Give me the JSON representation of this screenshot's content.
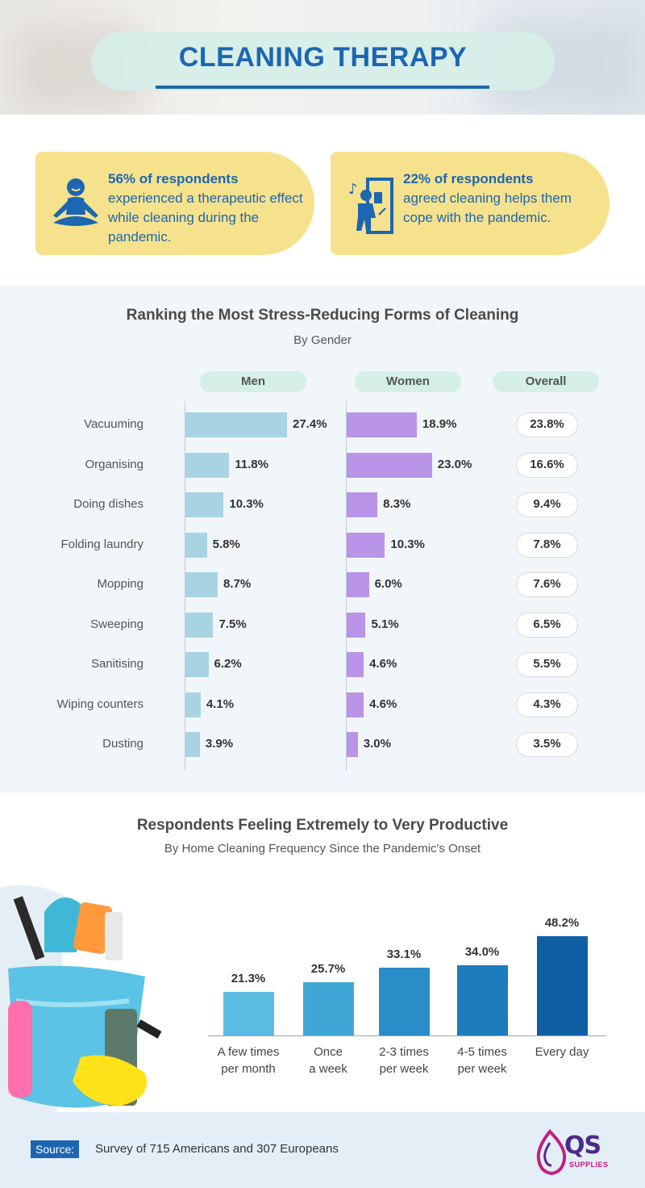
{
  "header": {
    "title": "CLEANING THERAPY"
  },
  "stats": [
    {
      "icon": "meditation-icon",
      "highlight": "56% of respondents",
      "text": "experienced a therapeutic effect while cleaning during the pandemic."
    },
    {
      "icon": "window-cleaning-icon",
      "highlight": "22% of respondents",
      "text": "agreed cleaning helps them cope with the pandemic."
    }
  ],
  "ranking": {
    "title": "Ranking the Most Stress-Reducing Forms of Cleaning",
    "subtitle": "By Gender",
    "columns": [
      "Men",
      "Women",
      "Overall"
    ]
  },
  "chart_data": [
    {
      "type": "bar",
      "orientation": "horizontal",
      "title": "Ranking the Most Stress-Reducing Forms of Cleaning",
      "subtitle": "By Gender",
      "categories": [
        "Vacuuming",
        "Organising",
        "Doing dishes",
        "Folding laundry",
        "Mopping",
        "Sweeping",
        "Sanitising",
        "Wiping counters",
        "Dusting"
      ],
      "series": [
        {
          "name": "Men",
          "values": [
            27.4,
            11.8,
            10.3,
            5.8,
            8.7,
            7.5,
            6.2,
            4.1,
            3.9
          ],
          "labels": [
            "27.4%",
            "11.8%",
            "10.3%",
            "5.8%",
            "8.7%",
            "7.5%",
            "6.2%",
            "4.1%",
            "3.9%"
          ],
          "color": "#a8d4e2"
        },
        {
          "name": "Women",
          "values": [
            18.9,
            23.0,
            8.3,
            10.3,
            6.0,
            5.1,
            4.6,
            4.6,
            3.0
          ],
          "labels": [
            "18.9%",
            "23.0%",
            "8.3%",
            "10.3%",
            "6.0%",
            "5.1%",
            "4.6%",
            "4.6%",
            "3.0%"
          ],
          "color": "#b994e8"
        },
        {
          "name": "Overall",
          "values": [
            23.8,
            16.6,
            9.4,
            7.8,
            7.6,
            6.5,
            5.5,
            4.3,
            3.5
          ],
          "labels": [
            "23.8%",
            "16.6%",
            "9.4%",
            "7.8%",
            "7.6%",
            "6.5%",
            "5.5%",
            "4.3%",
            "3.5%"
          ]
        }
      ],
      "grid": false
    },
    {
      "type": "bar",
      "title": "Respondents Feeling Extremely to Very Productive",
      "subtitle": "By Home Cleaning Frequency Since the Pandemic's Onset",
      "categories": [
        [
          "A few times",
          "per month"
        ],
        [
          "Once",
          "a week"
        ],
        [
          "2-3 times",
          "per week"
        ],
        [
          "4-5 times",
          "per week"
        ],
        [
          "Every day"
        ]
      ],
      "values": [
        21.3,
        25.7,
        33.1,
        34.0,
        48.2
      ],
      "labels": [
        "21.3%",
        "25.7%",
        "33.1%",
        "34.0%",
        "48.2%"
      ],
      "colors": [
        "#5cbde3",
        "#3fa7d6",
        "#2a8dc7",
        "#1d7cbc",
        "#0f5fa3"
      ],
      "grid": false
    }
  ],
  "footer": {
    "source_label": "Source:",
    "source_text": "Survey of 715 Americans and 307 Europeans",
    "logo_text": "QS",
    "logo_sub": "SUPPLIES"
  },
  "colors": {
    "accent": "#1c66b2",
    "yellow": "#f6e28c",
    "mint": "#d4efe6"
  }
}
